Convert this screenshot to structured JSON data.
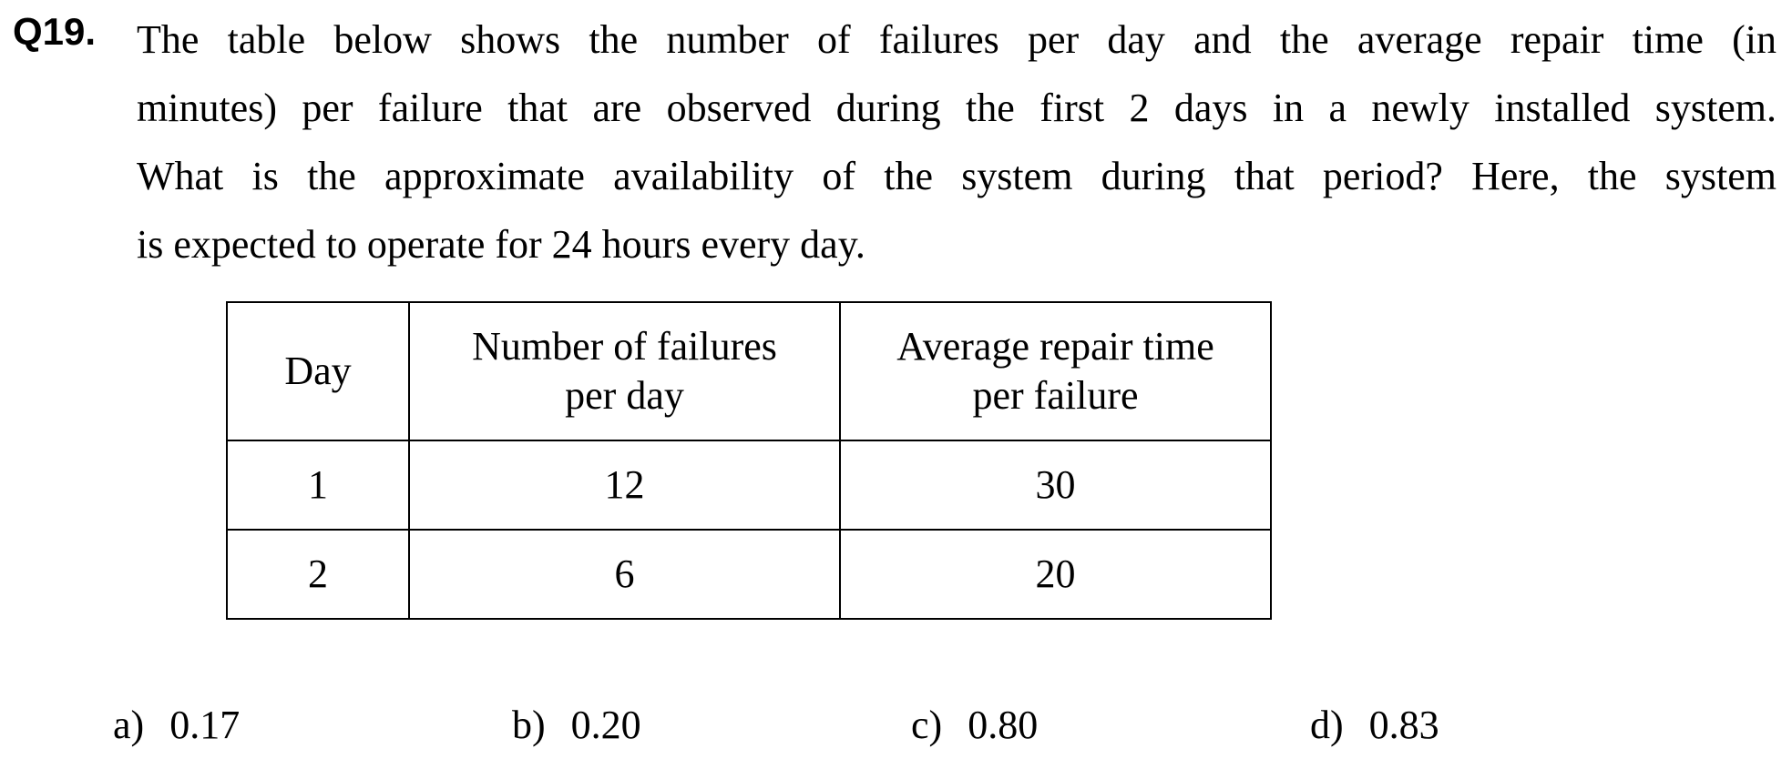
{
  "question": {
    "number": "Q19.",
    "lines": [
      "The table below shows the number of failures per day and the average repair time (in",
      "minutes) per failure that are observed during the first 2 days in a newly installed system.",
      "What is the approximate availability of the system during that period?   Here, the system",
      "is expected to operate for 24 hours every day."
    ]
  },
  "table": {
    "headers": {
      "day": "Day",
      "failures_line1": "Number of failures",
      "failures_line2": "per day",
      "repair_line1": "Average repair time",
      "repair_line2": "per failure"
    },
    "rows": [
      {
        "day": "1",
        "failures": "12",
        "repair_time": "30"
      },
      {
        "day": "2",
        "failures": "6",
        "repair_time": "20"
      }
    ]
  },
  "choices": [
    {
      "letter": "a)",
      "value": "0.17"
    },
    {
      "letter": "b)",
      "value": "0.20"
    },
    {
      "letter": "c)",
      "value": "0.80"
    },
    {
      "letter": "d)",
      "value": "0.83"
    }
  ]
}
